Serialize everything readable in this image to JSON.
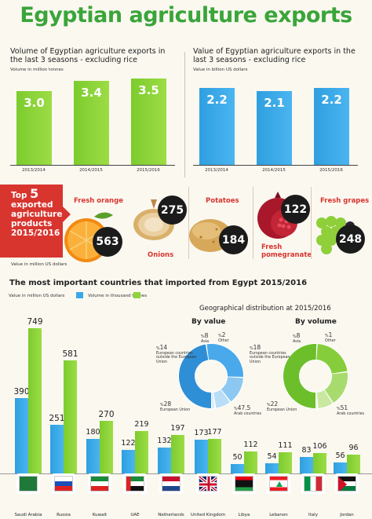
{
  "title": "Egyptian agriculture exports",
  "colors": {
    "green": "#8fd43a",
    "blue": "#3aa8ea",
    "red": "#d8352f",
    "title_green": "#3aa53a"
  },
  "chart_data": [
    {
      "type": "bar",
      "title": "Volume of Egyptian agriculture exports in the last 3 seasons - excluding rice",
      "unit_label": "Volume in million tonnes",
      "categories": [
        "2013/2014",
        "2014/2015",
        "2015/2016"
      ],
      "values": [
        3.0,
        3.4,
        3.5
      ],
      "value_labels": [
        "3.0",
        "3.4",
        "3.5"
      ],
      "color": "#8fd43a"
    },
    {
      "type": "bar",
      "title": "Value of Egyptian agriculture exports in the last 3 seasons - excluding rice",
      "unit_label": "Value in billion US dollars",
      "categories": [
        "2013/2014",
        "2014/2015",
        "2015/2016"
      ],
      "values": [
        2.2,
        2.1,
        2.2
      ],
      "value_labels": [
        "2.2",
        "2.1",
        "2.2"
      ],
      "color": "#3aa8ea"
    },
    {
      "type": "bar",
      "title": "The most important countries that imported from Egypt 2015/2016",
      "categories": [
        "Saudi Arabia",
        "Russia",
        "Kuwait",
        "UAE",
        "Netherlands",
        "United Kingdom",
        "Libya",
        "Lebanon",
        "Italy",
        "Jordan"
      ],
      "series": [
        {
          "name": "Value in million US dollars",
          "values": [
            390,
            251,
            180,
            122,
            132,
            173,
            50,
            54,
            83,
            56
          ]
        },
        {
          "name": "Volume in thousand tonnes",
          "values": [
            749,
            581,
            270,
            219,
            197,
            177,
            112,
            111,
            106,
            96
          ]
        }
      ]
    },
    {
      "type": "pie",
      "title": "By value",
      "segments": [
        {
          "label": "Arab countries",
          "percent": "47.5",
          "value": 47.5
        },
        {
          "label": "European Union",
          "percent": "28",
          "value": 28
        },
        {
          "label": "European countries outside the European Union",
          "percent": "14",
          "value": 14
        },
        {
          "label": "Asia",
          "percent": "8",
          "value": 8
        },
        {
          "label": "Other",
          "percent": "2",
          "value": 2
        }
      ]
    },
    {
      "type": "pie",
      "title": "By volume",
      "segments": [
        {
          "label": "Arab countries",
          "percent": "51",
          "value": 51
        },
        {
          "label": "European Union",
          "percent": "22",
          "value": 22
        },
        {
          "label": "European countries outside the European Union",
          "percent": "18",
          "value": 18
        },
        {
          "label": "Asia",
          "percent": "8",
          "value": 8
        },
        {
          "label": "Other",
          "percent": "1",
          "value": 1
        }
      ]
    }
  ],
  "top5": {
    "banner_top": "Top",
    "banner_num": "5",
    "banner_lines": [
      "exported",
      "agriculture",
      "products",
      "2015/2016"
    ],
    "unit": "Value in million US dollars",
    "products": [
      {
        "name": "Fresh orange",
        "value": "563"
      },
      {
        "name": "Onions",
        "value": "275"
      },
      {
        "name": "Potatoes",
        "value": "184"
      },
      {
        "name": "Fresh pomegranate",
        "value": "122"
      },
      {
        "name": "Fresh grapes",
        "value": "248"
      }
    ]
  },
  "geo": {
    "title": "Geographical distribution at 2015/2016",
    "percent_sign": "%"
  }
}
